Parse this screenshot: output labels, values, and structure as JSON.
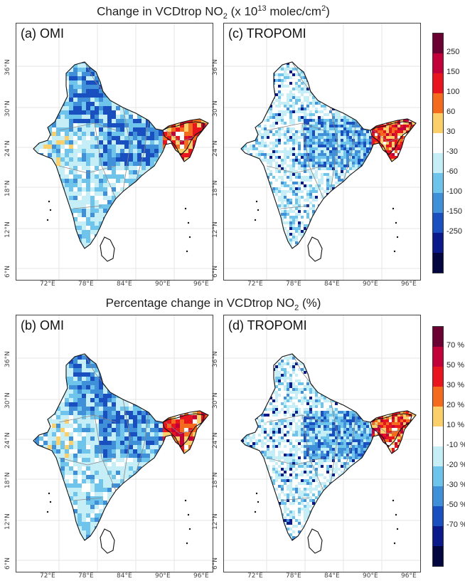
{
  "top_title": {
    "prefix": "Change in VCDtrop NO",
    "sub": "2",
    "mid": " (x 10",
    "sup": "13",
    "unit": " molec/cm",
    "sup2": "2",
    "end": ")"
  },
  "bottom_title": {
    "prefix": "Percentage change in VCDtrop NO",
    "sub": "2",
    "end": " (%)"
  },
  "panels": [
    {
      "label": "(a)  OMI"
    },
    {
      "label": "(c) TROPOMI"
    },
    {
      "label": "(b)  OMI"
    },
    {
      "label": "(d) TROPOMI"
    }
  ],
  "lat_ticks": [
    "36°N",
    "30°N",
    "24°N",
    "18°N",
    "12°N",
    "6°N"
  ],
  "lon_ticks": [
    "72°E",
    "78°E",
    "84°E",
    "90°E",
    "96°E"
  ],
  "colorbar_top": {
    "colors": [
      "#6b0033",
      "#c2003a",
      "#e8141e",
      "#f46b1e",
      "#fbd06a",
      "#ffffff",
      "#c6eef7",
      "#6ec4ea",
      "#3f8fd9",
      "#1a4fc0",
      "#0a1a8a",
      "#04063f"
    ],
    "labels": [
      "250",
      "150",
      "100",
      "60",
      "30",
      "-30",
      "-60",
      "-100",
      "-150",
      "-250"
    ]
  },
  "colorbar_bottom": {
    "colors": [
      "#6b0033",
      "#c2003a",
      "#e8141e",
      "#f46b1e",
      "#fbd06a",
      "#ffffff",
      "#c6eef7",
      "#6ec4ea",
      "#3f8fd9",
      "#1a4fc0",
      "#0a1a8a",
      "#04063f"
    ],
    "labels": [
      "70 %",
      "50 %",
      "30 %",
      "20 %",
      "10 %",
      "-10 %",
      "-20 %",
      "-30 %",
      "-50 %",
      "-70 %"
    ]
  }
}
